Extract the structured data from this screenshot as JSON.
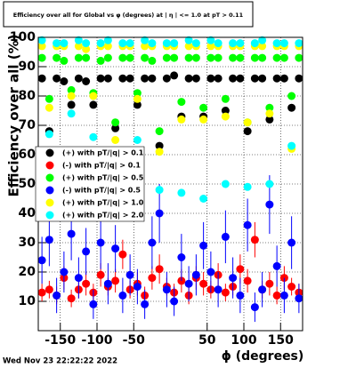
{
  "chart_data": {
    "type": "scatter",
    "title": "Efficiency over all for Global vs φ (degrees) at | η | <= 1.0 at pT > 0.11",
    "x_label": "ϕ (degrees)",
    "y_label": "Efficiency over all (%)",
    "footer": "Wed Nov 23 22:22:22 2022",
    "xlim": [
      -180,
      180
    ],
    "ylim": [
      0,
      100
    ],
    "xticks": [
      -150,
      -100,
      -50,
      50,
      100,
      150
    ],
    "yticks": [
      10,
      20,
      30,
      40,
      50,
      60,
      70,
      80,
      90,
      100
    ],
    "grid": true,
    "x": [
      -175,
      -165,
      -155,
      -145,
      -135,
      -125,
      -115,
      -105,
      -95,
      -85,
      -75,
      -65,
      -55,
      -45,
      -35,
      -25,
      -15,
      -5,
      5,
      15,
      25,
      35,
      45,
      55,
      65,
      75,
      85,
      95,
      105,
      115,
      125,
      135,
      145,
      155,
      165,
      175
    ],
    "series": [
      {
        "name": "(+) with pT/|q| > 0.1",
        "color": "#000000",
        "values": [
          86,
          68,
          86,
          85,
          77,
          86,
          85,
          77,
          86,
          86,
          69,
          86,
          86,
          77,
          86,
          86,
          63,
          86,
          87,
          73,
          86,
          86,
          73,
          86,
          86,
          75,
          86,
          86,
          68,
          86,
          86,
          72,
          86,
          86,
          76,
          86
        ]
      },
      {
        "name": "(-) with pT/|q| > 0.1",
        "color": "#ff0000",
        "values": [
          13,
          14,
          12,
          18,
          11,
          14,
          16,
          13,
          19,
          15,
          17,
          26,
          14,
          16,
          12,
          18,
          21,
          15,
          13,
          17,
          12,
          18,
          16,
          14,
          19,
          13,
          15,
          21,
          17,
          31,
          14,
          16,
          12,
          18,
          15,
          13
        ],
        "errors": [
          3,
          3,
          3,
          4,
          3,
          3,
          4,
          3,
          4,
          3,
          4,
          5,
          3,
          4,
          3,
          4,
          5,
          3,
          3,
          4,
          3,
          4,
          4,
          3,
          4,
          3,
          3,
          5,
          4,
          6,
          3,
          4,
          3,
          4,
          3,
          3
        ]
      },
      {
        "name": "(+) with pT/|q| > 0.5",
        "color": "#00ff00",
        "values": [
          93,
          79,
          93,
          92,
          82,
          93,
          93,
          81,
          92,
          93,
          71,
          93,
          93,
          81,
          93,
          92,
          68,
          93,
          93,
          78,
          93,
          93,
          76,
          93,
          93,
          79,
          93,
          93,
          71,
          93,
          93,
          76,
          93,
          93,
          80,
          93
        ]
      },
      {
        "name": "(-) with pT/|q| > 0.5",
        "color": "#0000ff",
        "values": [
          24,
          31,
          12,
          20,
          33,
          18,
          27,
          9,
          30,
          16,
          28,
          12,
          19,
          15,
          9,
          30,
          40,
          14,
          10,
          25,
          16,
          19,
          29,
          20,
          14,
          32,
          18,
          12,
          36,
          8,
          14,
          43,
          22,
          12,
          30,
          11
        ],
        "errors": [
          8,
          9,
          6,
          7,
          9,
          7,
          8,
          5,
          9,
          7,
          8,
          6,
          7,
          6,
          5,
          9,
          10,
          6,
          5,
          8,
          6,
          7,
          8,
          7,
          6,
          9,
          7,
          6,
          9,
          5,
          6,
          10,
          7,
          6,
          9,
          5
        ]
      },
      {
        "name": "(+) with pT/|q| > 1.0",
        "color": "#ffff00",
        "values": [
          97,
          76,
          97,
          97,
          80,
          97,
          96,
          80,
          97,
          97,
          65,
          97,
          97,
          79,
          97,
          97,
          61,
          97,
          97,
          72,
          97,
          97,
          72,
          97,
          97,
          73,
          97,
          97,
          71,
          97,
          97,
          74,
          97,
          97,
          62,
          97
        ]
      },
      {
        "name": "(+) with pT/|q| > 2.0",
        "color": "#00ffff",
        "values": [
          99,
          67,
          98,
          98,
          74,
          99,
          98,
          66,
          98,
          99,
          55,
          98,
          98,
          65,
          99,
          98,
          48,
          98,
          98,
          47,
          99,
          98,
          45,
          99,
          98,
          50,
          98,
          98,
          49,
          98,
          99,
          50,
          98,
          98,
          63,
          98
        ]
      }
    ]
  }
}
